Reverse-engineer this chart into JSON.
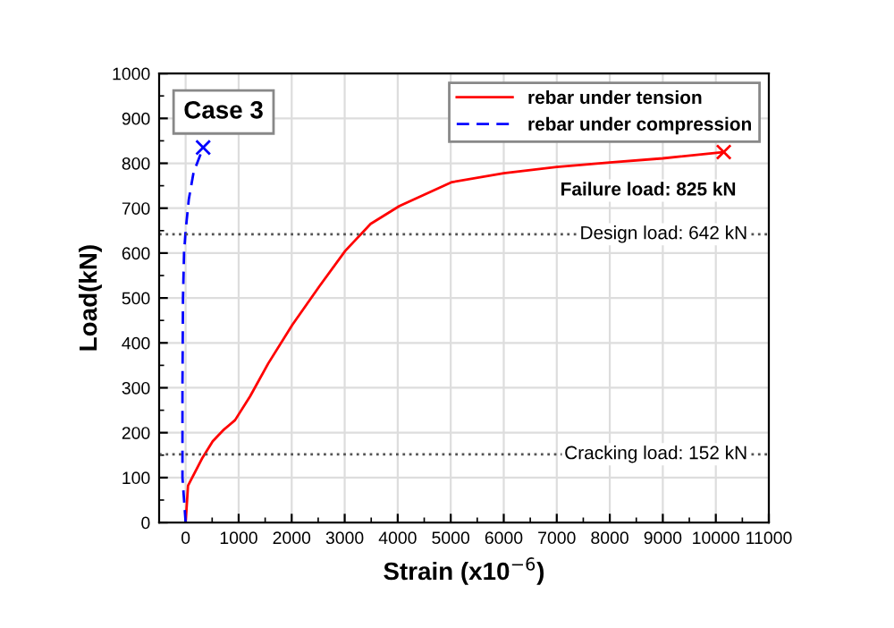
{
  "chart_data": {
    "type": "line",
    "xlabel": "Strain (x10$^{−6}$)",
    "ylabel": "Load(kN)",
    "xlim": [
      -500,
      11000
    ],
    "xticks": [
      0,
      1000,
      2000,
      3000,
      4000,
      5000,
      6000,
      7000,
      8000,
      9000,
      10000,
      11000
    ],
    "ylim": [
      0,
      1000
    ],
    "yticks": [
      0,
      100,
      200,
      300,
      400,
      500,
      600,
      700,
      800,
      900,
      1000
    ],
    "grid": true,
    "legend": "top right",
    "series": [
      {
        "name": "rebar under tension",
        "color": "#ff0000",
        "line_style": "solid",
        "x": [
          0,
          45,
          307,
          511,
          704,
          932,
          1216,
          1557,
          2011,
          2523,
          3011,
          3489,
          4034,
          5023,
          6000,
          7000,
          8000,
          9000,
          10150
        ],
        "values": [
          0,
          82,
          142,
          181,
          205,
          228,
          281,
          354,
          440,
          526,
          605,
          665,
          705,
          758,
          778,
          792,
          802,
          811,
          825
        ]
      },
      {
        "name": "rebar under compression",
        "color": "#0000ff",
        "line_style": "dashed",
        "x": [
          0,
          -60,
          -60,
          -50,
          -30,
          0,
          60,
          150,
          330
        ],
        "values": [
          0,
          100,
          300,
          500,
          600,
          650,
          720,
          780,
          835
        ]
      },
      {
        "type": "scatter",
        "color": "#ff0000",
        "marker": "cross",
        "x": [
          10150
        ],
        "values": [
          825
        ]
      },
      {
        "type": "scatter",
        "color": "#0000ff",
        "marker": "cross",
        "x": [
          330
        ],
        "values": [
          835
        ]
      }
    ],
    "ref_lines": [
      {
        "axis": "y",
        "value": 642,
        "label": "Design load: 642 kN",
        "color": "#555555",
        "line_style": "dotted"
      },
      {
        "axis": "y",
        "value": 152,
        "label": "Cracking load: 152 kN",
        "color": "#555555",
        "line_style": "dotted"
      }
    ],
    "annotations": [
      "Case 3",
      {
        "text": "Failure load: 825 kN",
        "x": 10150,
        "y": 825
      }
    ]
  }
}
